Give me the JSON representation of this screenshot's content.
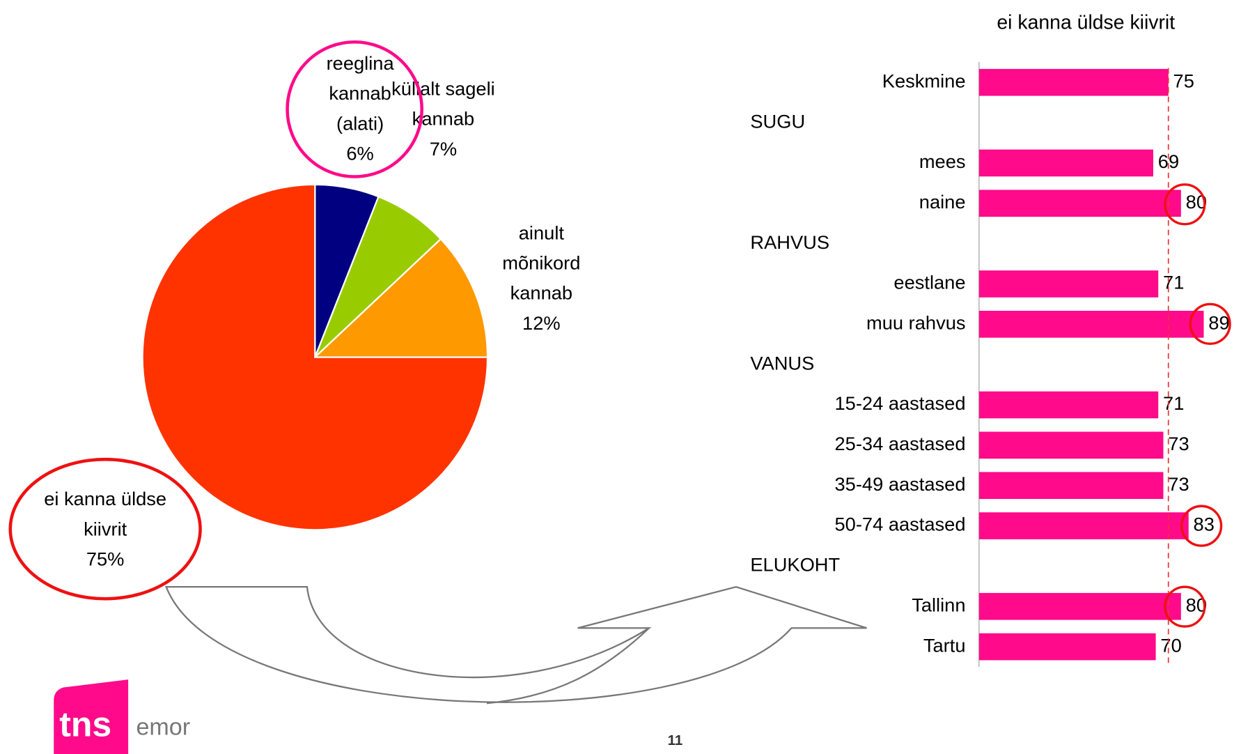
{
  "chart_data": [
    {
      "type": "pie",
      "categories": [
        "reeglina kannab (alati)",
        "küllalt sageli kannab",
        "ainult mõnikord kannab",
        "ei kanna üldse kiivrit"
      ],
      "values": [
        6,
        7,
        12,
        75
      ],
      "value_labels": [
        "6%",
        "7%",
        "12%",
        "75%"
      ],
      "colors": [
        "#000080",
        "#99cc00",
        "#ff9900",
        "#ff3300"
      ]
    },
    {
      "type": "bar",
      "title": "ei kanna üldse kiivrit",
      "categories": [
        "Keskmine",
        "SUGU",
        "mees",
        "naine",
        "RAHVUS",
        "eestlane",
        "muu rahvus",
        "VANUS",
        "15-24 aastased",
        "25-34 aastased",
        "35-49 aastased",
        "50-74 aastased",
        "ELUKOHT",
        "Tallinn",
        "Tartu"
      ],
      "values": [
        75,
        null,
        69,
        80,
        null,
        71,
        89,
        null,
        71,
        73,
        73,
        83,
        null,
        80,
        70
      ],
      "color": "#ff0a8a"
    }
  ],
  "logo": {
    "mark": "tns",
    "text": "emor"
  },
  "page_number": "11"
}
